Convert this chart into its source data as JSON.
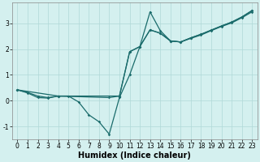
{
  "xlabel": "Humidex (Indice chaleur)",
  "xlim": [
    -0.5,
    23.5
  ],
  "ylim": [
    -1.5,
    3.8
  ],
  "xticks": [
    0,
    1,
    2,
    3,
    4,
    5,
    6,
    7,
    8,
    9,
    10,
    11,
    12,
    13,
    14,
    15,
    16,
    17,
    18,
    19,
    20,
    21,
    22,
    23
  ],
  "yticks": [
    -1,
    0,
    1,
    2,
    3
  ],
  "background_color": "#d4f0ef",
  "line_color": "#1a6b6b",
  "grid_color": "#b0d8d8",
  "line1_x": [
    0,
    1,
    2,
    3,
    4,
    5,
    6,
    7,
    8,
    9,
    10,
    11,
    12,
    13,
    14,
    15,
    16,
    17,
    18,
    19,
    20,
    21,
    22,
    23
  ],
  "line1_y": [
    0.42,
    0.32,
    0.18,
    0.12,
    0.18,
    0.18,
    -0.05,
    -0.55,
    -0.82,
    -1.3,
    0.12,
    1.0,
    2.1,
    3.45,
    2.72,
    2.32,
    2.28,
    2.42,
    2.55,
    2.72,
    2.88,
    3.02,
    3.22,
    3.45
  ],
  "line2_x": [
    0,
    1,
    2,
    3,
    4,
    10,
    11,
    12,
    13,
    14,
    15,
    16,
    17,
    18,
    19,
    20,
    21,
    22,
    23
  ],
  "line2_y": [
    0.42,
    0.3,
    0.12,
    0.1,
    0.18,
    0.18,
    1.9,
    2.1,
    2.75,
    2.62,
    2.32,
    2.28,
    2.44,
    2.58,
    2.74,
    2.9,
    3.05,
    3.25,
    3.5
  ],
  "line3_x": [
    0,
    4,
    9,
    10,
    11,
    12,
    13,
    14,
    15,
    16,
    17,
    18,
    19,
    20,
    21,
    22,
    23
  ],
  "line3_y": [
    0.42,
    0.18,
    0.12,
    0.18,
    1.9,
    2.1,
    2.75,
    2.62,
    2.32,
    2.28,
    2.44,
    2.58,
    2.74,
    2.9,
    3.05,
    3.25,
    3.5
  ],
  "tick_fontsize": 5.5,
  "xlabel_fontsize": 7,
  "linewidth": 0.9,
  "markersize": 1.8
}
